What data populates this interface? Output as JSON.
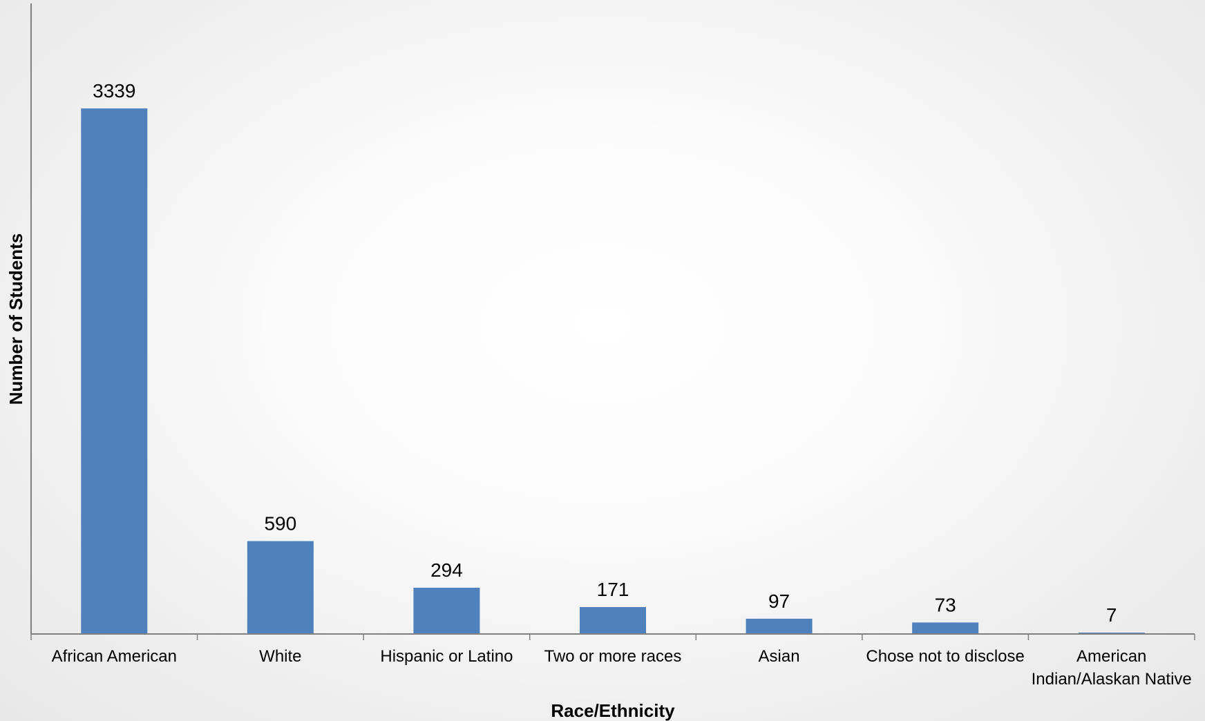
{
  "chart_data": {
    "type": "bar",
    "title": "",
    "xlabel": "Race/Ethnicity",
    "ylabel": "Number of Students",
    "categories": [
      "African American",
      "White",
      "Hispanic or Latino",
      "Two or more races",
      "Asian",
      "Chose not to disclose",
      "American Indian/Alaskan Native"
    ],
    "category_lines": [
      [
        "African American"
      ],
      [
        "White"
      ],
      [
        "Hispanic or Latino"
      ],
      [
        "Two or more races"
      ],
      [
        "Asian"
      ],
      [
        "Chose not to disclose"
      ],
      [
        "American",
        "Indian/Alaskan Native"
      ]
    ],
    "values": [
      3339,
      590,
      294,
      171,
      97,
      73,
      7
    ],
    "ylim": [
      0,
      4000
    ],
    "grid": false,
    "legend": "none",
    "bar_color": "#4f81bd",
    "axis_color": "#808080"
  }
}
